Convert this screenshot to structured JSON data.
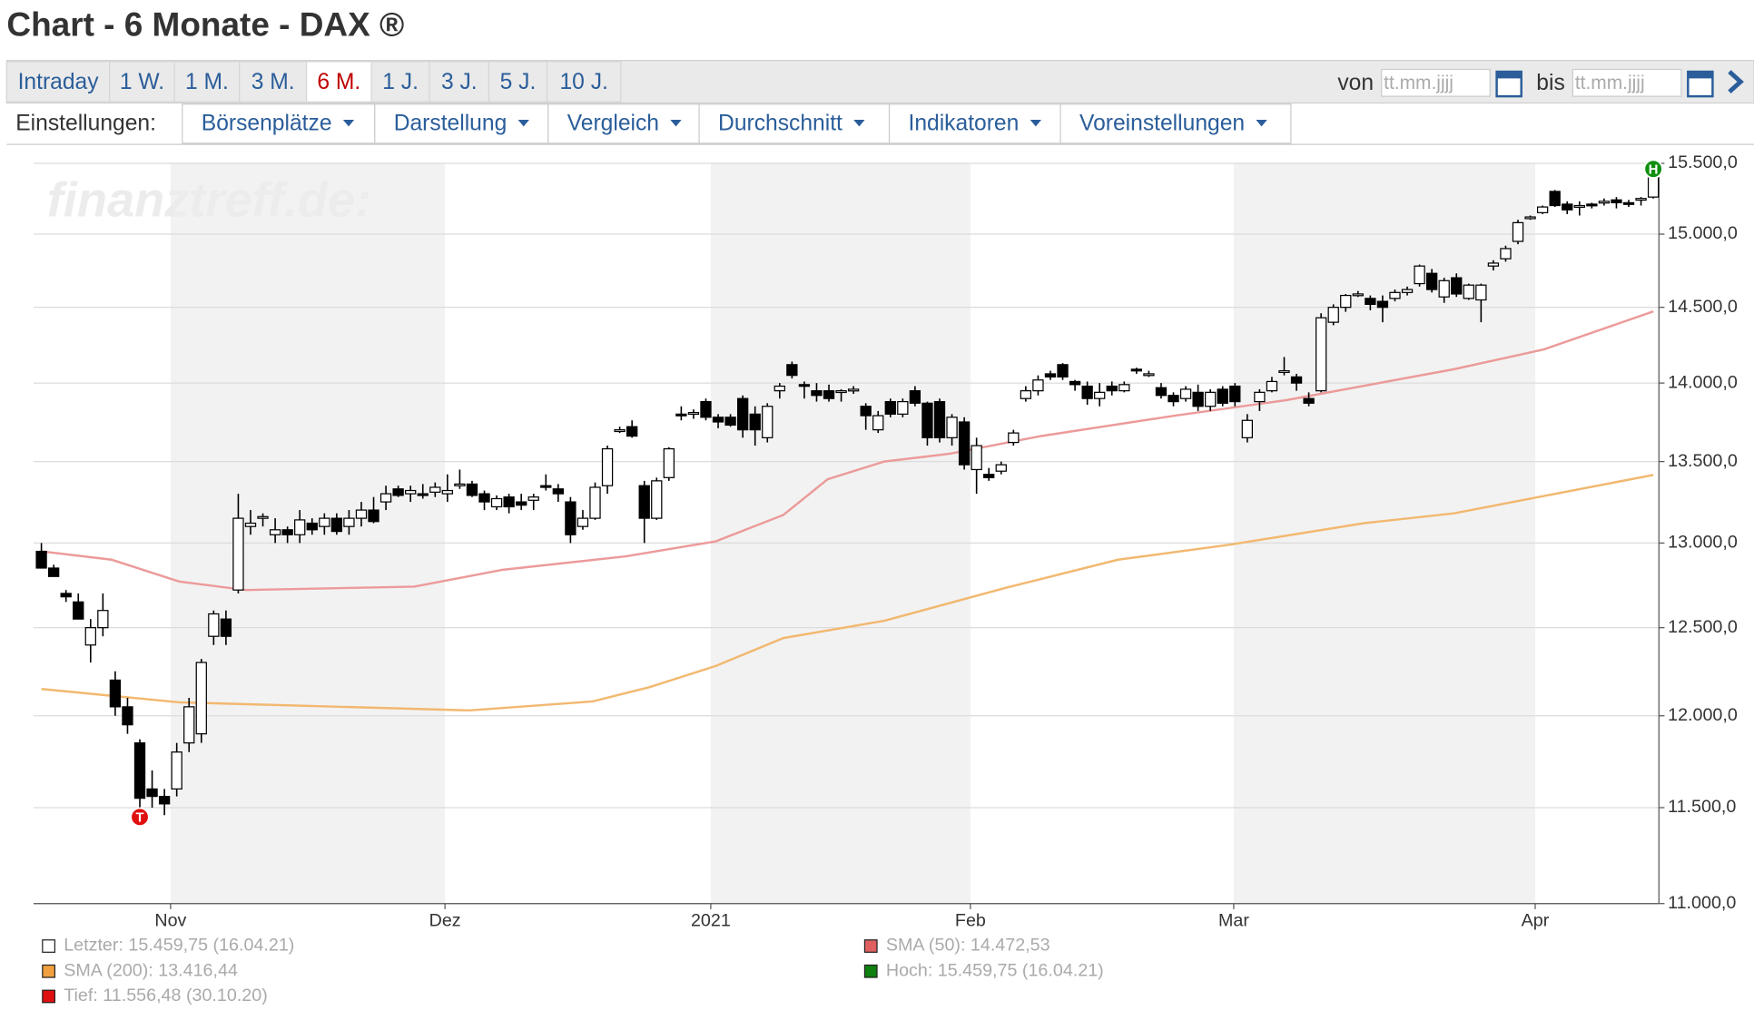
{
  "header": {
    "title": "Chart - 6 Monate - DAX ®"
  },
  "toolbar": {
    "periods": [
      "Intraday",
      "1 W.",
      "1 M.",
      "3 M.",
      "6 M.",
      "1 J.",
      "3 J.",
      "5 J.",
      "10 J."
    ],
    "active": 4,
    "from_label": "von",
    "to_label": "bis",
    "date_placeholder": "tt.mm.jjjj",
    "settings_label": "Einstellungen:",
    "menus": [
      "Börsenplätze",
      "Darstellung",
      "Vergleich",
      "Durchschnitt",
      "Indikatoren",
      "Voreinstellungen"
    ]
  },
  "chart_data": {
    "type": "candlestick",
    "watermark": "finanztreff.de:",
    "log_scale": true,
    "grid": true,
    "ylim": [
      11000,
      15500
    ],
    "yticks": [
      {
        "value": 11000,
        "label": "11.000,0"
      },
      {
        "value": 11500,
        "label": "11.500,0"
      },
      {
        "value": 12000,
        "label": "12.000,0"
      },
      {
        "value": 12500,
        "label": "12.500,0"
      },
      {
        "value": 13000,
        "label": "13.000,0"
      },
      {
        "value": 13500,
        "label": "13.500,0"
      },
      {
        "value": 14000,
        "label": "14.000,0"
      },
      {
        "value": 14500,
        "label": "14.500,0"
      },
      {
        "value": 15000,
        "label": "15.000,0"
      },
      {
        "value": 15500,
        "label": "15.500,0"
      }
    ],
    "xlim": [
      0,
      131
    ],
    "xticks": [
      {
        "value": 10.5,
        "label": "Nov"
      },
      {
        "value": 32.8,
        "label": "Dez"
      },
      {
        "value": 54.4,
        "label": "2021"
      },
      {
        "value": 75.5,
        "label": "Feb"
      },
      {
        "value": 96.9,
        "label": "Mar"
      },
      {
        "value": 121.4,
        "label": "Apr"
      }
    ],
    "low_label": "T",
    "high_label": "H",
    "ohlc": [
      [
        12950,
        13000,
        12850,
        12850
      ],
      [
        12850,
        12870,
        12800,
        12800
      ],
      [
        12700,
        12720,
        12650,
        12680
      ],
      [
        12650,
        12700,
        12550,
        12550
      ],
      [
        12400,
        12550,
        12300,
        12500
      ],
      [
        12500,
        12700,
        12450,
        12600
      ],
      [
        12200,
        12250,
        12000,
        12050
      ],
      [
        12050,
        12100,
        11900,
        11950
      ],
      [
        11850,
        11870,
        11450,
        11550
      ],
      [
        11600,
        11700,
        11500,
        11560
      ],
      [
        11560,
        11600,
        11460,
        11520
      ],
      [
        11600,
        11850,
        11560,
        11800
      ],
      [
        11850,
        12100,
        11800,
        12050
      ],
      [
        11900,
        12320,
        11850,
        12300
      ],
      [
        12450,
        12600,
        12400,
        12580
      ],
      [
        12550,
        12600,
        12400,
        12450
      ],
      [
        12720,
        13300,
        12700,
        13150
      ],
      [
        13100,
        13200,
        13050,
        13120
      ],
      [
        13150,
        13180,
        13100,
        13160
      ],
      [
        13050,
        13150,
        13000,
        13080
      ],
      [
        13080,
        13100,
        13000,
        13050
      ],
      [
        13050,
        13200,
        13000,
        13140
      ],
      [
        13120,
        13150,
        13050,
        13080
      ],
      [
        13100,
        13180,
        13050,
        13150
      ],
      [
        13150,
        13180,
        13050,
        13070
      ],
      [
        13100,
        13200,
        13050,
        13150
      ],
      [
        13150,
        13250,
        13100,
        13200
      ],
      [
        13200,
        13280,
        13120,
        13130
      ],
      [
        13250,
        13350,
        13200,
        13300
      ],
      [
        13330,
        13350,
        13280,
        13290
      ],
      [
        13300,
        13350,
        13250,
        13320
      ],
      [
        13300,
        13360,
        13270,
        13290
      ],
      [
        13310,
        13370,
        13280,
        13340
      ],
      [
        13300,
        13420,
        13250,
        13320
      ],
      [
        13350,
        13450,
        13330,
        13360
      ],
      [
        13360,
        13380,
        13280,
        13290
      ],
      [
        13300,
        13320,
        13200,
        13250
      ],
      [
        13220,
        13290,
        13200,
        13270
      ],
      [
        13280,
        13300,
        13180,
        13220
      ],
      [
        13250,
        13300,
        13200,
        13230
      ],
      [
        13260,
        13300,
        13200,
        13280
      ],
      [
        13350,
        13420,
        13320,
        13340
      ],
      [
        13330,
        13360,
        13250,
        13300
      ],
      [
        13250,
        13280,
        13000,
        13050
      ],
      [
        13100,
        13200,
        13080,
        13150
      ],
      [
        13150,
        13370,
        13140,
        13340
      ],
      [
        13350,
        13600,
        13300,
        13580
      ],
      [
        13690,
        13720,
        13680,
        13700
      ],
      [
        13720,
        13760,
        13650,
        13660
      ],
      [
        13350,
        13380,
        13000,
        13150
      ],
      [
        13150,
        13400,
        13140,
        13380
      ],
      [
        13400,
        13590,
        13380,
        13580
      ],
      [
        13800,
        13850,
        13760,
        13790
      ],
      [
        13800,
        13830,
        13770,
        13810
      ],
      [
        13880,
        13900,
        13760,
        13780
      ],
      [
        13780,
        13800,
        13710,
        13750
      ],
      [
        13780,
        13800,
        13720,
        13730
      ],
      [
        13900,
        13920,
        13650,
        13700
      ],
      [
        13800,
        13850,
        13600,
        13700
      ],
      [
        13650,
        13870,
        13620,
        13850
      ],
      [
        13950,
        14000,
        13900,
        13980
      ],
      [
        14120,
        14140,
        14030,
        14050
      ],
      [
        13990,
        14010,
        13900,
        13980
      ],
      [
        13950,
        14000,
        13880,
        13920
      ],
      [
        13950,
        13990,
        13880,
        13900
      ],
      [
        13940,
        13960,
        13880,
        13950
      ],
      [
        13950,
        13980,
        13930,
        13960
      ],
      [
        13850,
        13870,
        13700,
        13790
      ],
      [
        13700,
        13820,
        13680,
        13790
      ],
      [
        13880,
        13900,
        13780,
        13800
      ],
      [
        13800,
        13900,
        13780,
        13880
      ],
      [
        13950,
        13980,
        13850,
        13870
      ],
      [
        13870,
        13880,
        13600,
        13650
      ],
      [
        13880,
        13900,
        13620,
        13650
      ],
      [
        13650,
        13800,
        13600,
        13780
      ],
      [
        13750,
        13780,
        13450,
        13480
      ],
      [
        13450,
        13650,
        13300,
        13600
      ],
      [
        13420,
        13460,
        13380,
        13400
      ],
      [
        13440,
        13500,
        13420,
        13480
      ],
      [
        13620,
        13700,
        13600,
        13680
      ],
      [
        13900,
        13980,
        13880,
        13950
      ],
      [
        13950,
        14050,
        13920,
        14020
      ],
      [
        14060,
        14080,
        14020,
        14040
      ],
      [
        14120,
        14130,
        14020,
        14040
      ],
      [
        14010,
        14020,
        13950,
        13990
      ],
      [
        13980,
        14010,
        13860,
        13900
      ],
      [
        13900,
        14000,
        13850,
        13940
      ],
      [
        13980,
        14010,
        13920,
        13950
      ],
      [
        13950,
        14010,
        13940,
        13990
      ],
      [
        14090,
        14100,
        14060,
        14080
      ],
      [
        14060,
        14080,
        14040,
        14060
      ],
      [
        13970,
        14000,
        13900,
        13920
      ],
      [
        13920,
        13940,
        13850,
        13880
      ],
      [
        13900,
        13980,
        13880,
        13960
      ],
      [
        13940,
        13990,
        13820,
        13850
      ],
      [
        13850,
        13960,
        13820,
        13940
      ],
      [
        13960,
        13980,
        13850,
        13870
      ],
      [
        13980,
        14000,
        13850,
        13880
      ],
      [
        13650,
        13800,
        13620,
        13760
      ],
      [
        13880,
        13960,
        13820,
        13940
      ],
      [
        13950,
        14040,
        13940,
        14010
      ],
      [
        14080,
        14170,
        14050,
        14080
      ],
      [
        14040,
        14060,
        13950,
        14000
      ],
      [
        13900,
        13940,
        13850,
        13870
      ],
      [
        13950,
        14460,
        13940,
        14430
      ],
      [
        14400,
        14520,
        14380,
        14500
      ],
      [
        14500,
        14590,
        14470,
        14580
      ],
      [
        14590,
        14610,
        14570,
        14590
      ],
      [
        14560,
        14580,
        14480,
        14520
      ],
      [
        14540,
        14580,
        14400,
        14500
      ],
      [
        14560,
        14620,
        14540,
        14600
      ],
      [
        14600,
        14640,
        14580,
        14620
      ],
      [
        14660,
        14790,
        14640,
        14780
      ],
      [
        14730,
        14760,
        14600,
        14620
      ],
      [
        14570,
        14700,
        14530,
        14680
      ],
      [
        14700,
        14730,
        14570,
        14590
      ],
      [
        14560,
        14660,
        14550,
        14650
      ],
      [
        14550,
        14660,
        14400,
        14650
      ],
      [
        14780,
        14820,
        14750,
        14800
      ],
      [
        14830,
        14920,
        14810,
        14900
      ],
      [
        14950,
        15100,
        14930,
        15080
      ],
      [
        15110,
        15130,
        15100,
        15120
      ],
      [
        15150,
        15200,
        15140,
        15190
      ],
      [
        15300,
        15310,
        15190,
        15200
      ],
      [
        15210,
        15230,
        15140,
        15170
      ],
      [
        15200,
        15230,
        15130,
        15200
      ],
      [
        15210,
        15220,
        15180,
        15200
      ],
      [
        15230,
        15250,
        15200,
        15230
      ],
      [
        15240,
        15260,
        15180,
        15220
      ],
      [
        15220,
        15240,
        15190,
        15210
      ],
      [
        15240,
        15260,
        15200,
        15250
      ],
      [
        15260,
        15459.75,
        15250,
        15459.75
      ]
    ],
    "lines": [
      {
        "color": "#f2b870",
        "x": [
          0,
          11.2,
          34.8,
          44.8,
          49.4,
          54.8,
          60.3,
          68.5,
          78.5,
          87.5,
          96.6,
          107.5,
          114.8,
          131
        ],
        "values": [
          12150,
          12075,
          12030,
          12080,
          12160,
          12280,
          12440,
          12540,
          12735,
          12900,
          12990,
          13120,
          13180,
          13416.44
        ]
      },
      {
        "color": "#ec9a9a",
        "x": [
          0,
          5.7,
          11.2,
          16.6,
          30.3,
          37.5,
          47.5,
          54.8,
          60.3,
          63.9,
          68.5,
          73.9,
          81.2,
          92.1,
          101.2,
          114.8,
          122.1,
          131
        ],
        "values": [
          12950,
          12900,
          12770,
          12720,
          12740,
          12840,
          12920,
          13010,
          13170,
          13390,
          13500,
          13550,
          13660,
          13790,
          13890,
          14090,
          14220,
          14472.53
        ]
      }
    ],
    "legend": [
      {
        "text": "Letzter: 15.459,75 (16.04.21)",
        "color": "#ffffff"
      },
      {
        "text": "SMA (200): 13.416,44",
        "color": "#f0a040"
      },
      {
        "text": "Tief: 11.556,48 (30.10.20)",
        "color": "#e01010"
      },
      {
        "text": "SMA (50): 14.472,53",
        "color": "#e06060"
      },
      {
        "text": "Hoch: 15.459,75 (16.04.21)",
        "color": "#108010"
      }
    ]
  }
}
